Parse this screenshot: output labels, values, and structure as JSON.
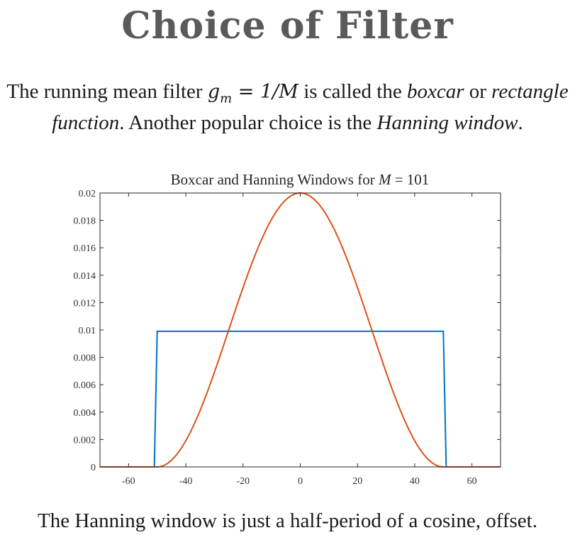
{
  "slide": {
    "title": "Choice of Filter",
    "intro": {
      "part1": "The running mean filter ",
      "formula_lhs": "g",
      "formula_sub": "m",
      "formula_rhs": " = 1/M",
      "part2": " is called the ",
      "boxcar": "boxcar",
      "part3": " or ",
      "rect": "rectangle function",
      "part4": ". Another popular choice is the ",
      "hanning": "Hanning window",
      "part5": "."
    },
    "footer": "The Hanning window is just a half-period of a cosine, offset."
  },
  "chart_data": {
    "type": "line",
    "title_prefix": "Boxcar and Hanning Windows for ",
    "title_var": "M",
    "title_suffix": " = 101",
    "xlim": [
      -70,
      70
    ],
    "ylim": [
      0,
      0.02
    ],
    "xticks": [
      -60,
      -40,
      -20,
      0,
      20,
      40,
      60
    ],
    "xtick_labels": [
      "-60",
      "-40",
      "-20",
      "0",
      "20",
      "40",
      "60"
    ],
    "yticks": [
      0,
      0.002,
      0.004,
      0.006,
      0.008,
      0.01,
      0.012,
      0.014,
      0.016,
      0.018,
      0.02
    ],
    "ytick_labels": [
      "0",
      "0.002",
      "0.004",
      "0.006",
      "0.008",
      "0.01",
      "0.012",
      "0.014",
      "0.016",
      "0.018",
      "0.02"
    ],
    "grid": false,
    "series": [
      {
        "kind": "boxcar",
        "color": "#0072bd",
        "x": [
          -70,
          -51,
          -50,
          50,
          51,
          70
        ],
        "y": [
          0,
          0,
          0.0099,
          0.0099,
          0,
          0
        ]
      },
      {
        "kind": "hanning",
        "color": "#d95319",
        "x": [
          -70,
          -50,
          -45,
          -40,
          -35,
          -30,
          -25,
          -20,
          -15,
          -10,
          -5,
          0,
          5,
          10,
          15,
          20,
          25,
          30,
          35,
          40,
          45,
          50,
          70
        ],
        "y": [
          0,
          0,
          0.0005,
          0.0019,
          0.0042,
          0.0069,
          0.01,
          0.0131,
          0.0158,
          0.0181,
          0.0195,
          0.02,
          0.0195,
          0.0181,
          0.0158,
          0.0131,
          0.01,
          0.0069,
          0.0042,
          0.0019,
          0.0005,
          0,
          0
        ]
      }
    ]
  }
}
